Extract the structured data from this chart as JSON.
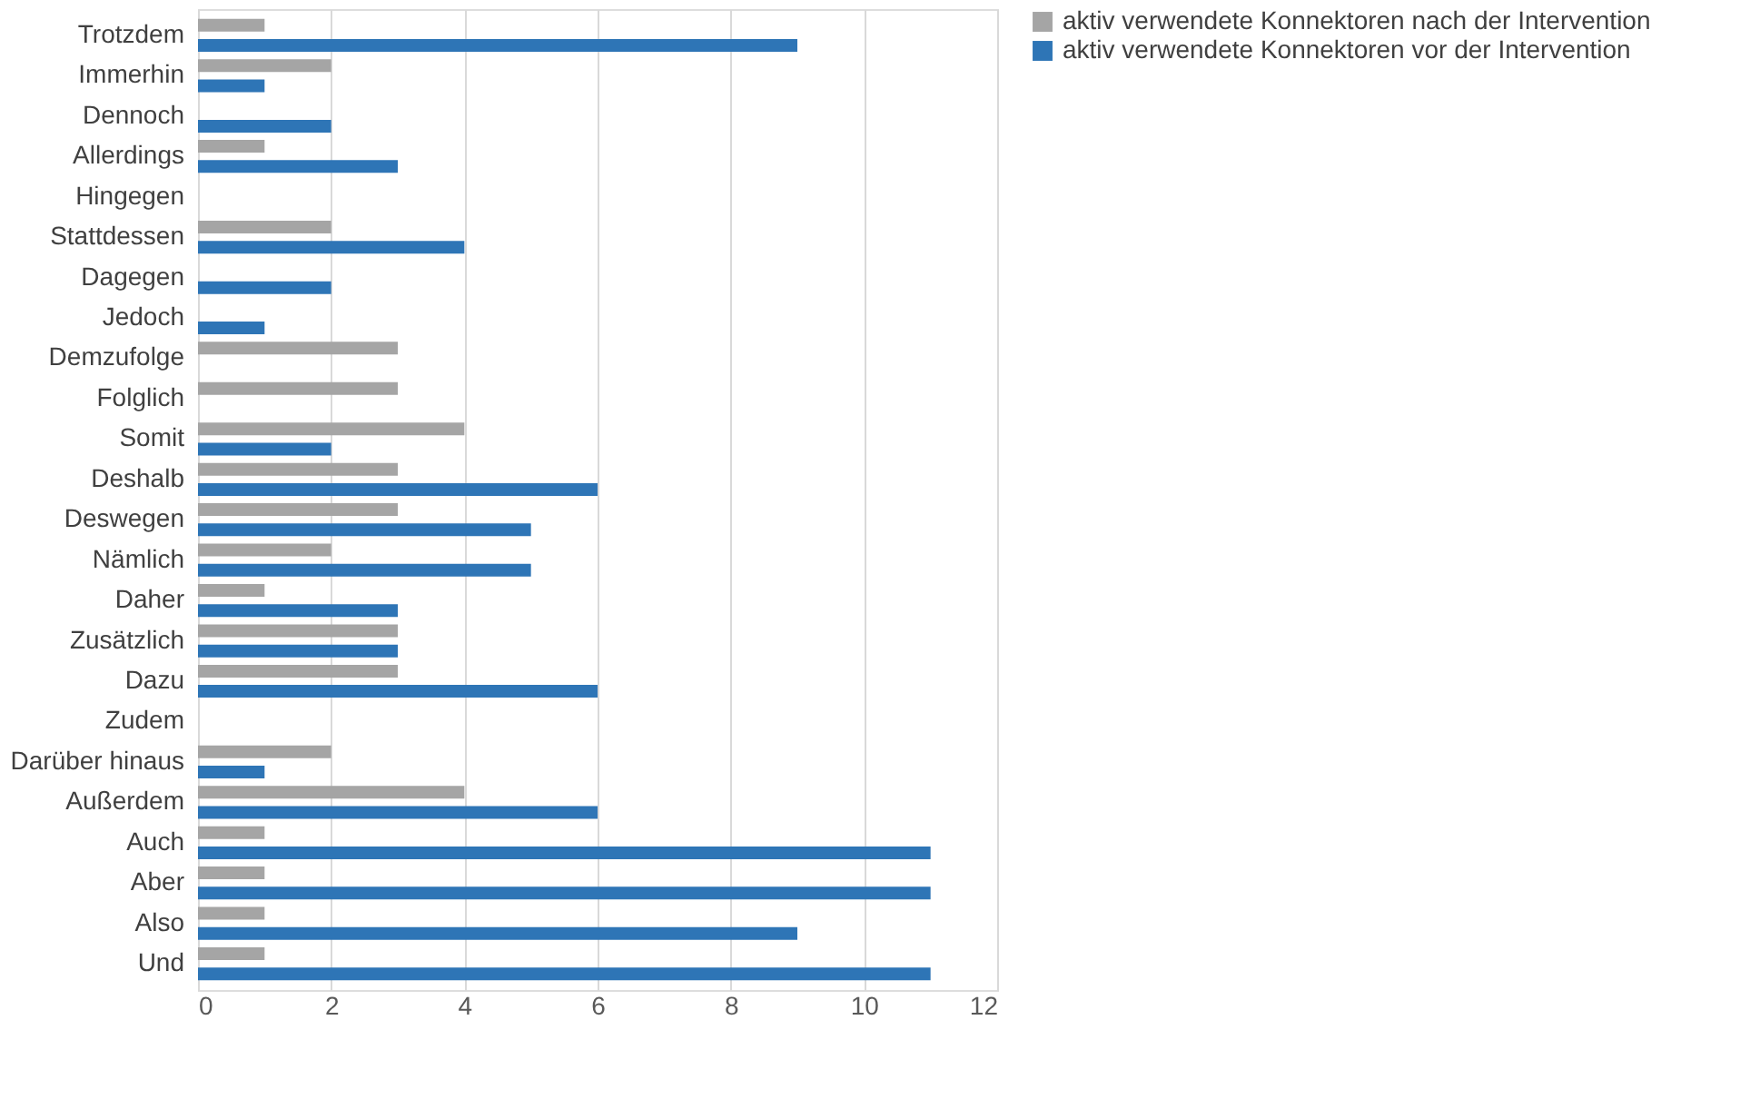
{
  "chart_data": {
    "type": "bar",
    "orientation": "horizontal",
    "categories": [
      "Trotzdem",
      "Immerhin",
      "Dennoch",
      "Allerdings",
      "Hingegen",
      "Stattdessen",
      "Dagegen",
      "Jedoch",
      "Demzufolge",
      "Folglich",
      "Somit",
      "Deshalb",
      "Deswegen",
      "Nämlich",
      "Daher",
      "Zusätzlich",
      "Dazu",
      "Zudem",
      "Darüber hinaus",
      "Außerdem",
      "Auch",
      "Aber",
      "Also",
      "Und"
    ],
    "series": [
      {
        "name": "aktiv verwendete Konnektoren nach der Intervention",
        "color": "#a5a5a5",
        "values": [
          1,
          2,
          0,
          1,
          0,
          2,
          0,
          0,
          3,
          3,
          4,
          3,
          3,
          2,
          1,
          3,
          3,
          0,
          2,
          4,
          1,
          1,
          1,
          1
        ]
      },
      {
        "name": "aktiv verwendete Konnektoren vor der Intervention",
        "color": "#2e75b6",
        "values": [
          9,
          1,
          2,
          3,
          0,
          4,
          2,
          1,
          0,
          0,
          2,
          6,
          5,
          5,
          3,
          3,
          6,
          0,
          1,
          6,
          11,
          11,
          9,
          11
        ]
      }
    ],
    "xlim": [
      0,
      12
    ],
    "xticks": [
      0,
      2,
      4,
      6,
      8,
      10,
      12
    ],
    "grid": "x",
    "legend": "right"
  }
}
